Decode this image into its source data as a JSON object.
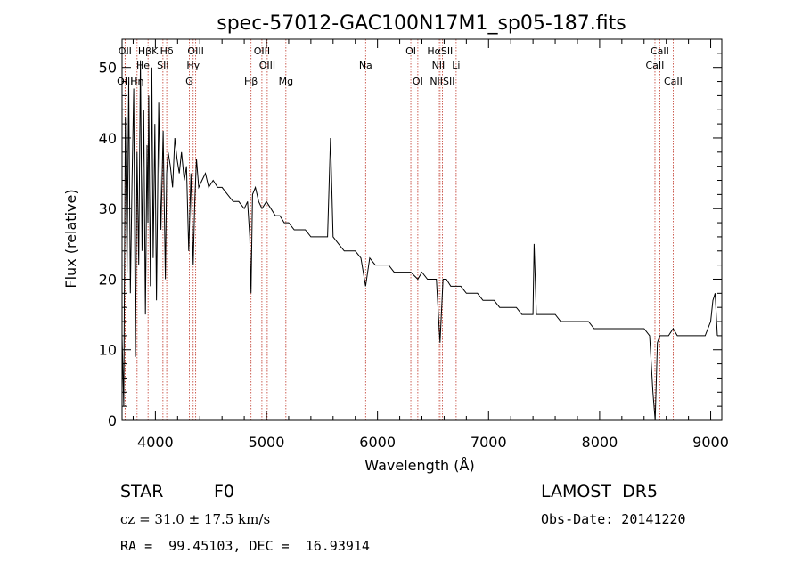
{
  "chart_data": {
    "type": "line",
    "title": "spec-57012-GAC100N17M1_sp05-187.fits",
    "xlabel": "Wavelength (Å)",
    "ylabel": "Flux (relative)",
    "xlim": [
      3700,
      9100
    ],
    "ylim": [
      0,
      54
    ],
    "xticks": [
      4000,
      5000,
      6000,
      7000,
      8000,
      9000
    ],
    "yticks": [
      0,
      10,
      20,
      30,
      40,
      50
    ],
    "grid": false,
    "series": [
      {
        "x": [
          3700,
          3715,
          3730,
          3745,
          3760,
          3775,
          3790,
          3805,
          3820,
          3835,
          3850,
          3865,
          3880,
          3895,
          3910,
          3925,
          3933,
          3940,
          3955,
          3968,
          3980,
          3995,
          4010,
          4030,
          4050,
          4070,
          4090,
          4101,
          4115,
          4135,
          4155,
          4175,
          4195,
          4215,
          4235,
          4260,
          4280,
          4300,
          4320,
          4340,
          4355,
          4370,
          4390,
          4420,
          4450,
          4480,
          4520,
          4560,
          4600,
          4650,
          4700,
          4750,
          4800,
          4830,
          4850,
          4861,
          4875,
          4900,
          4930,
          4960,
          5000,
          5040,
          5080,
          5120,
          5160,
          5200,
          5250,
          5300,
          5350,
          5400,
          5450,
          5500,
          5550,
          5577,
          5600,
          5650,
          5700,
          5750,
          5800,
          5850,
          5893,
          5930,
          5980,
          6050,
          6100,
          6150,
          6200,
          6250,
          6300,
          6363,
          6400,
          6450,
          6500,
          6530,
          6563,
          6590,
          6620,
          6660,
          6700,
          6750,
          6800,
          6850,
          6900,
          6950,
          7000,
          7050,
          7100,
          7150,
          7200,
          7250,
          7300,
          7350,
          7400,
          7410,
          7430,
          7500,
          7550,
          7600,
          7650,
          7700,
          7750,
          7800,
          7850,
          7900,
          7950,
          8000,
          8050,
          8100,
          8150,
          8200,
          8250,
          8300,
          8350,
          8400,
          8450,
          8480,
          8500,
          8520,
          8542,
          8570,
          8620,
          8662,
          8700,
          8750,
          8800,
          8850,
          8900,
          8950,
          9000,
          9020,
          9040,
          9060
        ],
        "y": [
          12,
          2,
          43,
          21,
          48,
          18,
          34,
          47,
          9,
          38,
          22,
          51,
          24,
          44,
          15,
          39,
          28,
          46,
          19,
          50,
          23,
          42,
          17,
          45,
          27,
          41,
          20,
          35,
          38,
          36,
          33,
          40,
          37,
          35,
          38,
          34,
          36,
          24,
          35,
          22,
          31,
          37,
          33,
          34,
          35,
          33,
          34,
          33,
          33,
          32,
          31,
          31,
          30,
          31,
          26,
          18,
          32,
          33,
          31,
          30,
          31,
          30,
          29,
          29,
          28,
          28,
          27,
          27,
          27,
          26,
          26,
          26,
          26,
          40,
          26,
          25,
          24,
          24,
          24,
          23,
          19,
          23,
          22,
          22,
          22,
          21,
          21,
          21,
          21,
          20,
          21,
          20,
          20,
          20,
          11,
          20,
          20,
          19,
          19,
          19,
          18,
          18,
          18,
          17,
          17,
          17,
          16,
          16,
          16,
          16,
          15,
          15,
          15,
          25,
          15,
          15,
          15,
          15,
          14,
          14,
          14,
          14,
          14,
          14,
          13,
          13,
          13,
          13,
          13,
          13,
          13,
          13,
          13,
          13,
          12,
          4,
          0,
          11,
          12,
          12,
          12,
          13,
          12,
          12,
          12,
          12,
          12,
          12,
          14,
          17,
          18,
          12
        ],
        "color": "#000000"
      }
    ],
    "spectral_lines": [
      {
        "label": "HβK",
        "wavelength": 3934
      },
      {
        "label": "Hδ",
        "wavelength": 4102
      },
      {
        "label": "OIII",
        "wavelength": 4363
      },
      {
        "label": "OIII",
        "wavelength": 4959
      },
      {
        "label": "OI",
        "wavelength": 6300
      },
      {
        "label": "HαSII",
        "wavelength": 6563
      },
      {
        "label": "CaII",
        "wavelength": 8542
      },
      {
        "label": "OII",
        "wavelength": 3727
      },
      {
        "label": "He",
        "wavelength": 3889
      },
      {
        "label": "SII",
        "wavelength": 4068
      },
      {
        "label": "Hγ",
        "wavelength": 4340
      },
      {
        "label": "OIII",
        "wavelength": 5007
      },
      {
        "label": "Na",
        "wavelength": 5893
      },
      {
        "label": "NII",
        "wavelength": 6548
      },
      {
        "label": "Li",
        "wavelength": 6708
      },
      {
        "label": "CaII",
        "wavelength": 8498
      },
      {
        "label": "OIII",
        "wavelength": 3727
      },
      {
        "label": "Hη",
        "wavelength": 3835
      },
      {
        "label": "G",
        "wavelength": 4305
      },
      {
        "label": "Hβ",
        "wavelength": 4861
      },
      {
        "label": "Mg",
        "wavelength": 5175
      },
      {
        "label": "OI",
        "wavelength": 6363
      },
      {
        "label": "NIISII",
        "wavelength": 6584
      },
      {
        "label": "CaII",
        "wavelength": 8662
      }
    ],
    "line_color": "#c0392b"
  },
  "info": {
    "object_class": "STAR",
    "subclass": "F0",
    "survey": "LAMOST  DR5",
    "redshift": "cz = 31.0 ± 17.5 km/s",
    "obs_date": "Obs-Date: 20141220",
    "coords": "RA =  99.45103, DEC =  16.93914"
  }
}
